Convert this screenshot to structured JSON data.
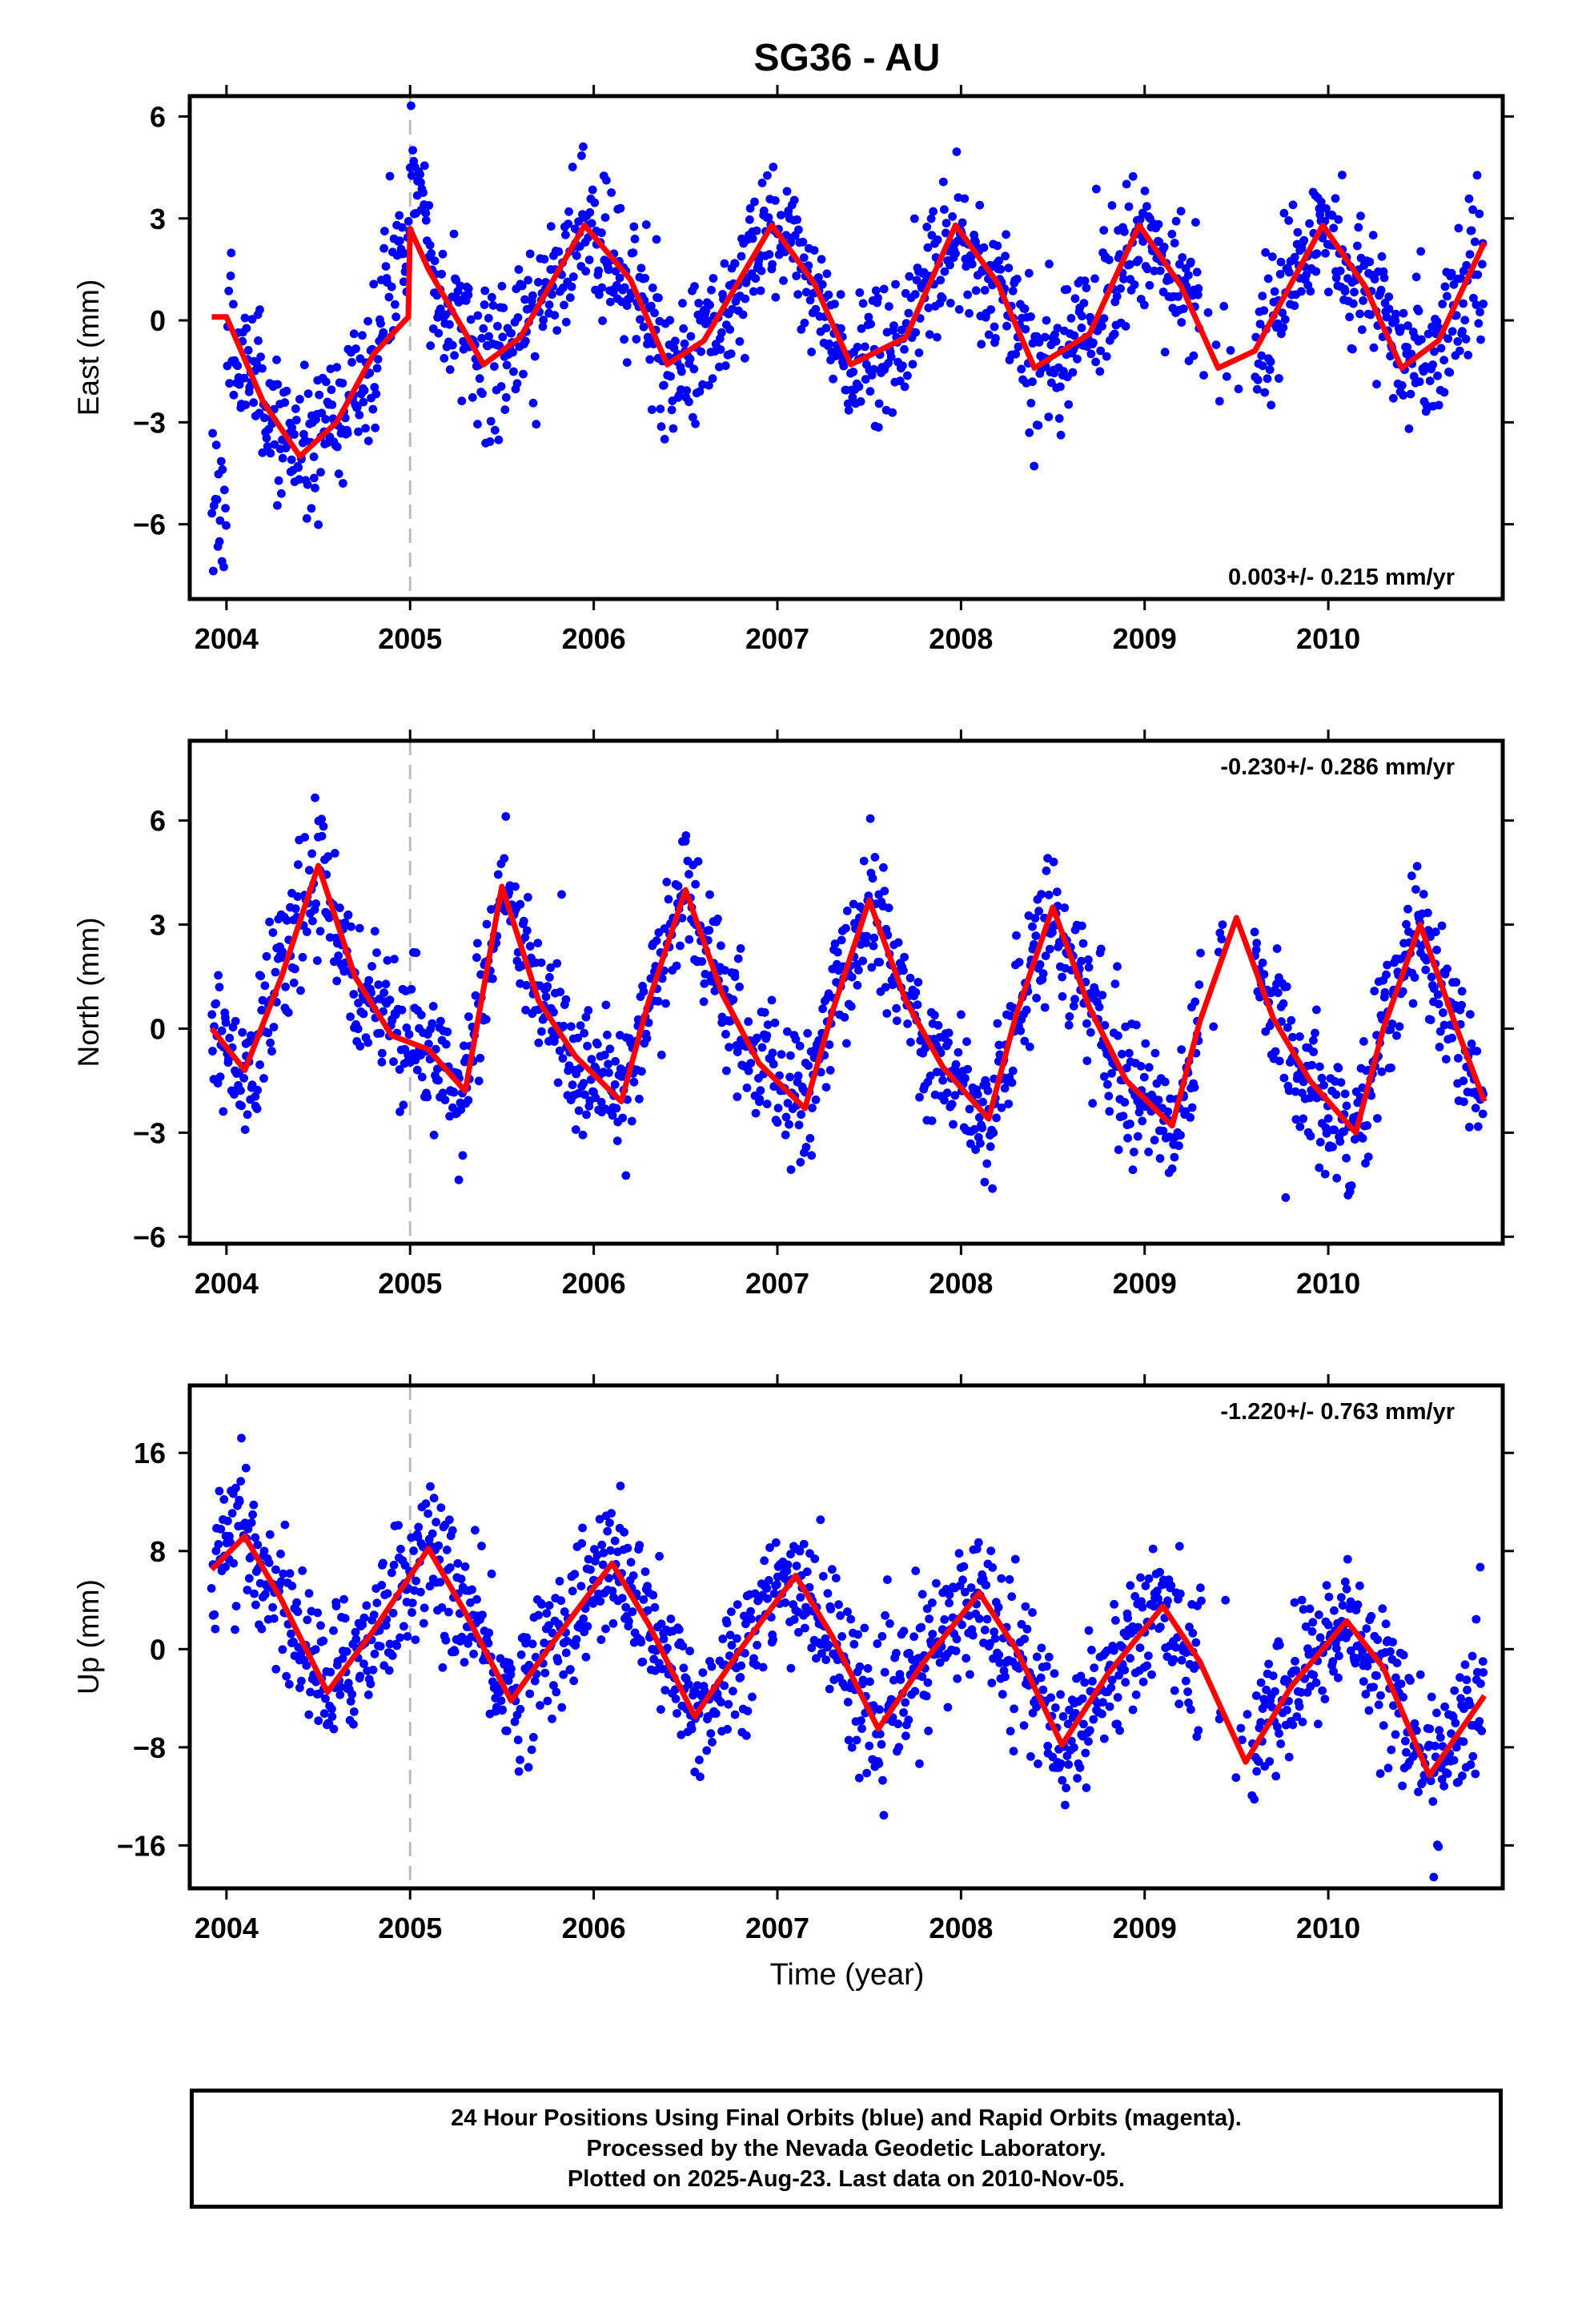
{
  "chart_data": {
    "type": "scatter",
    "title": "SG36 - AU",
    "xlabel": "Time (year)",
    "xlim": [
      2003.8,
      2010.95
    ],
    "x_ticks": [
      "2004",
      "2005",
      "2006",
      "2007",
      "2008",
      "2009",
      "2010"
    ],
    "x_tick_values": [
      2004,
      2005,
      2006,
      2007,
      2008,
      2009,
      2010
    ],
    "data_start": 2003.92,
    "data_end": 2010.85,
    "event_line_year": 2005.0,
    "grid": false,
    "colors": {
      "points": "#0000ff",
      "model": "#ff0000",
      "event_line": "#bbbbbb"
    },
    "panels": [
      {
        "component": "East",
        "ylabel": "East (mm)",
        "ylim": [
          -8.2,
          6.6
        ],
        "y_ticks": [
          "6",
          "3",
          "0",
          "−3",
          "−6"
        ],
        "y_tick_values": [
          6,
          3,
          0,
          -3,
          -6
        ],
        "rate": "0.003+/- 0.215 mm/yr",
        "rate_position": "bottom-right",
        "series": [
          {
            "role": "daily positions",
            "color": "#0000ff",
            "style": "dots"
          },
          {
            "role": "model fit",
            "color": "#ff0000",
            "style": "line",
            "x": [
              2003.92,
              2004.0,
              2004.2,
              2004.4,
              2004.6,
              2004.8,
              2004.99,
              2005.0,
              2005.1,
              2005.4,
              2005.6,
              2005.95,
              2006.2,
              2006.4,
              2006.6,
              2006.97,
              2007.2,
              2007.4,
              2007.7,
              2007.97,
              2008.2,
              2008.4,
              2008.7,
              2008.97,
              2009.2,
              2009.4,
              2009.6,
              2009.97,
              2010.2,
              2010.4,
              2010.6,
              2010.85
            ],
            "y": [
              0.1,
              0.1,
              -2.4,
              -4.0,
              -3.0,
              -1.0,
              0.1,
              2.7,
              1.5,
              -1.3,
              -0.5,
              2.8,
              1.2,
              -1.3,
              -0.6,
              2.8,
              1.1,
              -1.3,
              -0.5,
              2.8,
              1.1,
              -1.4,
              -0.4,
              2.8,
              1.0,
              -1.4,
              -0.9,
              2.8,
              1.0,
              -1.4,
              -0.6,
              2.3
            ]
          }
        ]
      },
      {
        "component": "North",
        "ylabel": "North (mm)",
        "ylim": [
          -6.2,
          8.3
        ],
        "y_ticks": [
          "6",
          "3",
          "0",
          "−3",
          "−6"
        ],
        "y_tick_values": [
          6,
          3,
          0,
          -3,
          -6
        ],
        "rate": "-0.230+/- 0.286 mm/yr",
        "rate_position": "top-right",
        "series": [
          {
            "role": "daily positions",
            "color": "#0000ff",
            "style": "dots"
          },
          {
            "role": "model fit",
            "color": "#ff0000",
            "style": "line",
            "x": [
              2003.92,
              2004.1,
              2004.3,
              2004.5,
              2004.7,
              2004.9,
              2005.1,
              2005.3,
              2005.5,
              2005.7,
              2005.9,
              2006.15,
              2006.3,
              2006.5,
              2006.7,
              2006.9,
              2007.15,
              2007.3,
              2007.5,
              2007.7,
              2007.9,
              2008.15,
              2008.3,
              2008.5,
              2008.7,
              2008.9,
              2009.15,
              2009.3,
              2009.5,
              2009.7,
              2009.9,
              2010.15,
              2010.3,
              2010.5,
              2010.7,
              2010.85
            ],
            "y": [
              0.0,
              -1.2,
              1.5,
              4.7,
              1.5,
              -0.2,
              -0.6,
              -1.8,
              4.1,
              0.8,
              -0.8,
              -2.1,
              0.8,
              4.0,
              1.0,
              -1.0,
              -2.3,
              0.5,
              3.7,
              0.8,
              -1.1,
              -2.6,
              0.4,
              3.5,
              0.6,
              -1.5,
              -2.8,
              0.2,
              3.2,
              0.3,
              -1.5,
              -3.0,
              0.0,
              3.0,
              0.0,
              -2.1
            ]
          }
        ]
      },
      {
        "component": "Up",
        "ylabel": "Up (mm)",
        "ylim": [
          -19.5,
          21.5
        ],
        "y_ticks": [
          "16",
          "8",
          "0",
          "−8",
          "−16"
        ],
        "y_tick_values": [
          16,
          8,
          0,
          -8,
          -16
        ],
        "rate": "-1.220+/- 0.763 mm/yr",
        "rate_position": "top-right",
        "series": [
          {
            "role": "daily positions",
            "color": "#0000ff",
            "style": "dots"
          },
          {
            "role": "model fit",
            "color": "#ff0000",
            "style": "line",
            "x": [
              2003.92,
              2004.1,
              2004.3,
              2004.55,
              2004.8,
              2005.1,
              2005.3,
              2005.55,
              2005.8,
              2006.1,
              2006.3,
              2006.55,
              2006.8,
              2007.1,
              2007.3,
              2007.55,
              2007.8,
              2008.1,
              2008.3,
              2008.55,
              2008.8,
              2009.1,
              2009.3,
              2009.55,
              2009.8,
              2010.1,
              2010.3,
              2010.55,
              2010.85
            ],
            "y": [
              6.5,
              9.2,
              4.0,
              -3.5,
              1.5,
              8.2,
              3.0,
              -4.2,
              1.0,
              7.0,
              2.0,
              -5.5,
              0.0,
              6.0,
              1.0,
              -6.5,
              -1.0,
              4.6,
              0.0,
              -7.8,
              -2.0,
              3.5,
              -1.0,
              -9.2,
              -3.0,
              2.3,
              -1.5,
              -10.3,
              -3.8
            ]
          }
        ]
      }
    ]
  },
  "footer": {
    "line1": "24 Hour Positions Using Final Orbits (blue) and Rapid Orbits (magenta).",
    "line2": "Processed by the Nevada Geodetic Laboratory.",
    "line3": "Plotted on 2025-Aug-23. Last data on 2010-Nov-05."
  }
}
